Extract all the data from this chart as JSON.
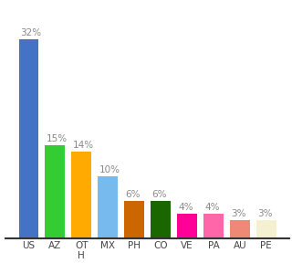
{
  "categories": [
    "US",
    "AZ",
    "OT\nH",
    "MX",
    "PH",
    "CO",
    "VE",
    "PA",
    "AU",
    "PE"
  ],
  "values": [
    32,
    15,
    14,
    10,
    6,
    6,
    4,
    4,
    3,
    3
  ],
  "bar_colors": [
    "#4472c4",
    "#33cc33",
    "#ffaa00",
    "#77bbee",
    "#cc6600",
    "#1a6600",
    "#ff0099",
    "#ff66aa",
    "#ee8877",
    "#f5f0d0"
  ],
  "label_color": "#888888",
  "background_color": "#ffffff",
  "ylim": [
    0,
    37
  ],
  "bar_width": 0.75
}
